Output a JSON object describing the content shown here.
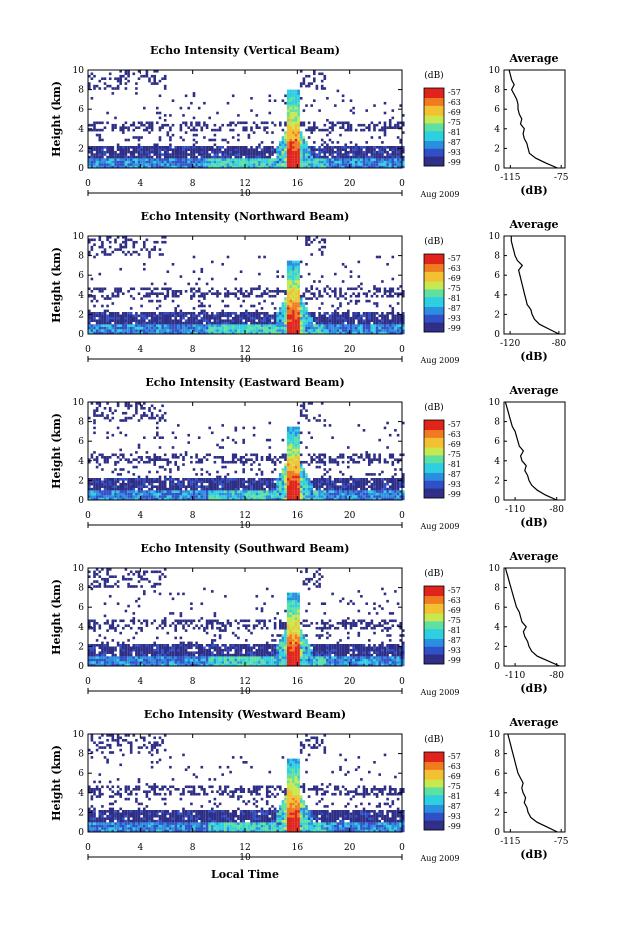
{
  "xlabel": "Local Time",
  "date_label": "Aug 2009",
  "day_label": "10",
  "colorbar_unit": "(dB)",
  "colorbar_ticks": [
    "-57",
    "-63",
    "-69",
    "-75",
    "-81",
    "-87",
    "-93",
    "-99"
  ],
  "colors": {
    "scale": [
      "#2e2e86",
      "#3050c8",
      "#2a8ee0",
      "#2ecfe0",
      "#5ee0a0",
      "#c8e850",
      "#f2c030",
      "#f07a20",
      "#e0241c"
    ]
  },
  "chart_data": [
    {
      "type": "heatmap",
      "title": "Echo Intensity (Vertical Beam)",
      "ylabel": "Height (km)",
      "xlim": [
        0,
        24
      ],
      "ylim": [
        0,
        10
      ],
      "xticks": [
        "0",
        "4",
        "8",
        "12",
        "16",
        "20",
        "0"
      ],
      "yticks": [
        "0",
        "2",
        "4",
        "6",
        "8",
        "10"
      ],
      "colorbar": {
        "label": "(dB)",
        "range": [
          -99,
          -57
        ]
      },
      "average": {
        "title": "Average",
        "xlabel": "(dB)",
        "xticks": [
          "-115",
          "-75"
        ],
        "xlim": [
          -120,
          -72
        ],
        "height": [
          0,
          0.5,
          1,
          1.5,
          2,
          2.5,
          3,
          3.5,
          4,
          4.5,
          5,
          5.5,
          6,
          6.5,
          7,
          7.5,
          8,
          8.5,
          9,
          9.5,
          10
        ],
        "value": [
          -78,
          -87,
          -95,
          -100,
          -101,
          -102,
          -104,
          -105,
          -104,
          -107,
          -106,
          -108,
          -109,
          -109,
          -110,
          -112,
          -114,
          -112,
          -114,
          -115,
          -116
        ]
      }
    },
    {
      "type": "heatmap",
      "title": "Echo Intensity (Northward Beam)",
      "ylabel": "Height (km)",
      "xlim": [
        0,
        24
      ],
      "ylim": [
        0,
        10
      ],
      "xticks": [
        "0",
        "4",
        "8",
        "12",
        "16",
        "20",
        "0"
      ],
      "yticks": [
        "0",
        "2",
        "4",
        "6",
        "8",
        "10"
      ],
      "colorbar": {
        "label": "(dB)",
        "range": [
          -99,
          -57
        ]
      },
      "average": {
        "title": "Average",
        "xlabel": "(dB)",
        "xticks": [
          "-120",
          "-80"
        ],
        "xlim": [
          -125,
          -75
        ],
        "height": [
          0,
          0.5,
          1,
          1.5,
          2,
          2.5,
          3,
          3.5,
          4,
          4.5,
          5,
          5.5,
          6,
          6.5,
          7,
          7.5,
          8,
          8.5,
          9,
          9.5,
          10
        ],
        "value": [
          -80,
          -88,
          -96,
          -100,
          -102,
          -103,
          -106,
          -107,
          -108,
          -109,
          -110,
          -111,
          -112,
          -113,
          -110,
          -114,
          -116,
          -117,
          -118,
          -119,
          -119
        ]
      }
    },
    {
      "type": "heatmap",
      "title": "Echo Intensity (Eastward Beam)",
      "ylabel": "Height (km)",
      "xlim": [
        0,
        24
      ],
      "ylim": [
        0,
        10
      ],
      "xticks": [
        "0",
        "4",
        "8",
        "12",
        "16",
        "20",
        "0"
      ],
      "yticks": [
        "0",
        "2",
        "4",
        "6",
        "8",
        "10"
      ],
      "colorbar": {
        "label": "(dB)",
        "range": [
          -99,
          -57
        ]
      },
      "average": {
        "title": "Average",
        "xlabel": "(dB)",
        "xticks": [
          "-110",
          "-80"
        ],
        "xlim": [
          -118,
          -74
        ],
        "height": [
          0,
          0.5,
          1,
          1.5,
          2,
          2.5,
          3,
          3.5,
          4,
          4.5,
          5,
          5.5,
          6,
          6.5,
          7,
          7.5,
          8,
          8.5,
          9,
          9.5,
          10
        ],
        "value": [
          -80,
          -88,
          -94,
          -98,
          -100,
          -101,
          -103,
          -102,
          -105,
          -106,
          -104,
          -107,
          -108,
          -109,
          -110,
          -112,
          -113,
          -114,
          -115,
          -116,
          -117
        ]
      }
    },
    {
      "type": "heatmap",
      "title": "Echo Intensity (Southward Beam)",
      "ylabel": "Height (km)",
      "xlim": [
        0,
        24
      ],
      "ylim": [
        0,
        10
      ],
      "xticks": [
        "0",
        "4",
        "8",
        "12",
        "16",
        "20",
        "0"
      ],
      "yticks": [
        "0",
        "2",
        "4",
        "6",
        "8",
        "10"
      ],
      "colorbar": {
        "label": "(dB)",
        "range": [
          -99,
          -57
        ]
      },
      "average": {
        "title": "Average",
        "xlabel": "(dB)",
        "xticks": [
          "-110",
          "-80"
        ],
        "xlim": [
          -118,
          -74
        ],
        "height": [
          0,
          0.5,
          1,
          1.5,
          2,
          2.5,
          3,
          3.5,
          4,
          4.5,
          5,
          5.5,
          6,
          6.5,
          7,
          7.5,
          8,
          8.5,
          9,
          9.5,
          10
        ],
        "value": [
          -78,
          -86,
          -94,
          -98,
          -100,
          -101,
          -103,
          -104,
          -102,
          -105,
          -106,
          -107,
          -109,
          -110,
          -111,
          -112,
          -113,
          -114,
          -115,
          -116,
          -117
        ]
      }
    },
    {
      "type": "heatmap",
      "title": "Echo Intensity (Westward Beam)",
      "ylabel": "Height (km)",
      "xlim": [
        0,
        24
      ],
      "ylim": [
        0,
        10
      ],
      "xticks": [
        "0",
        "4",
        "8",
        "12",
        "16",
        "20",
        "0"
      ],
      "yticks": [
        "0",
        "2",
        "4",
        "6",
        "8",
        "10"
      ],
      "colorbar": {
        "label": "(dB)",
        "range": [
          -99,
          -57
        ]
      },
      "average": {
        "title": "Average",
        "xlabel": "(dB)",
        "xticks": [
          "-115",
          "-75"
        ],
        "xlim": [
          -120,
          -72
        ],
        "height": [
          0,
          0.5,
          1,
          1.5,
          2,
          2.5,
          3,
          3.5,
          4,
          4.5,
          5,
          5.5,
          6,
          6.5,
          7,
          7.5,
          8,
          8.5,
          9,
          9.5,
          10
        ],
        "value": [
          -78,
          -86,
          -94,
          -99,
          -101,
          -102,
          -104,
          -103,
          -105,
          -106,
          -105,
          -107,
          -109,
          -110,
          -111,
          -112,
          -113,
          -114,
          -115,
          -116,
          -117
        ]
      }
    }
  ]
}
